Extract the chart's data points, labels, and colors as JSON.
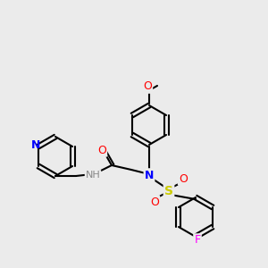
{
  "bg_color": "#ebebeb",
  "bond_color": "#000000",
  "bond_lw": 1.5,
  "atom_colors": {
    "N": "#0000ff",
    "O": "#ff0000",
    "S": "#cccc00",
    "F": "#ff00ff",
    "H_on_N": "#888888",
    "C": "#000000"
  },
  "font_size": 8,
  "figsize": [
    3.0,
    3.0
  ],
  "dpi": 100
}
